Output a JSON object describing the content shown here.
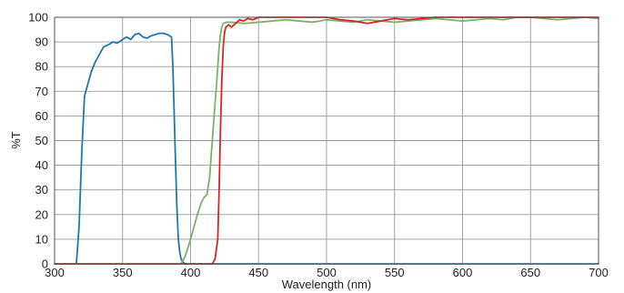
{
  "chart_data": {
    "type": "line",
    "title": "",
    "xlabel": "Wavelength (nm)",
    "ylabel": "%T",
    "xlim": [
      300,
      700
    ],
    "ylim": [
      0,
      100
    ],
    "x_ticks": [
      300,
      350,
      400,
      450,
      500,
      550,
      600,
      650,
      700
    ],
    "y_ticks": [
      0,
      10,
      20,
      30,
      40,
      50,
      60,
      70,
      80,
      90,
      100
    ],
    "grid": true,
    "legend": "none",
    "series": [
      {
        "color": "#1f77b4",
        "x": [
          300,
          316,
          318,
          320,
          322,
          324,
          327,
          330,
          333,
          336,
          340,
          343,
          346,
          350,
          353,
          356,
          359,
          362,
          365,
          368,
          371,
          374,
          377,
          380,
          383,
          386,
          387,
          388,
          389,
          390,
          391,
          392,
          393,
          394,
          395,
          396,
          400,
          700
        ],
        "y": [
          0,
          0,
          15,
          45,
          68,
          72,
          78,
          82,
          85,
          88,
          89,
          90,
          89.5,
          91,
          92,
          91,
          93,
          93.5,
          92,
          91.5,
          92.5,
          93,
          93.5,
          93.5,
          93,
          92,
          80,
          60,
          40,
          22,
          10,
          5,
          2,
          1,
          0.5,
          0,
          0,
          0
        ]
      },
      {
        "color": "#7fb069",
        "x": [
          300,
          393,
          396,
          400,
          405,
          408,
          410,
          412,
          414,
          416,
          418,
          419,
          420,
          421,
          422,
          423,
          424,
          426,
          430,
          440,
          450,
          460,
          470,
          480,
          490,
          500,
          510,
          520,
          530,
          540,
          550,
          560,
          570,
          580,
          590,
          600,
          610,
          620,
          630,
          640,
          650,
          660,
          670,
          680,
          690,
          700
        ],
        "y": [
          0,
          0,
          3,
          10,
          20,
          25,
          27,
          28,
          35,
          50,
          65,
          72,
          80,
          88,
          93,
          96,
          97.5,
          98,
          98,
          97.5,
          98,
          98.5,
          99,
          98.5,
          98,
          99,
          98.5,
          98,
          99,
          98.5,
          98,
          98.5,
          99,
          99.5,
          99,
          98.5,
          99,
          99.5,
          99,
          100,
          100,
          99.5,
          99,
          99.5,
          100,
          99.5
        ]
      },
      {
        "color": "#d62728",
        "x": [
          300,
          416,
          418,
          420,
          421,
          422,
          423,
          424,
          425,
          426,
          428,
          430,
          433,
          436,
          439,
          442,
          446,
          450,
          460,
          470,
          480,
          490,
          500,
          510,
          520,
          530,
          540,
          550,
          560,
          570,
          580,
          590,
          600,
          610,
          620,
          630,
          640,
          650,
          660,
          670,
          680,
          690,
          700
        ],
        "y": [
          0,
          0,
          2,
          10,
          30,
          55,
          75,
          88,
          94,
          96,
          97,
          96,
          97.5,
          99,
          98.5,
          99.5,
          99,
          100,
          100,
          100,
          100,
          100,
          100,
          99,
          98.5,
          97.5,
          98.5,
          99.5,
          99,
          99.5,
          100,
          100,
          100,
          100,
          100,
          100,
          100,
          100,
          100,
          100,
          100,
          100,
          100
        ]
      }
    ]
  }
}
